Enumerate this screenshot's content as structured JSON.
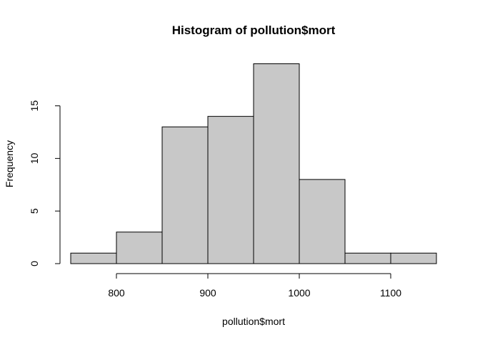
{
  "chart_data": {
    "type": "bar",
    "title": "Histogram of pollution$mort",
    "xlabel": "pollution$mort",
    "ylabel": "Frequency",
    "bins": [
      {
        "from": 750,
        "to": 800,
        "count": 1
      },
      {
        "from": 800,
        "to": 850,
        "count": 3
      },
      {
        "from": 850,
        "to": 900,
        "count": 13
      },
      {
        "from": 900,
        "to": 950,
        "count": 14
      },
      {
        "from": 950,
        "to": 1000,
        "count": 19
      },
      {
        "from": 1000,
        "to": 1050,
        "count": 8
      },
      {
        "from": 1050,
        "to": 1100,
        "count": 1
      },
      {
        "from": 1100,
        "to": 1150,
        "count": 1
      }
    ],
    "x_ticks": [
      800,
      900,
      1000,
      1100
    ],
    "y_ticks": [
      0,
      5,
      10,
      15
    ],
    "xlim": [
      750,
      1150
    ],
    "ylim": [
      0,
      19
    ],
    "grid": false,
    "bar_fill": "#c8c8c8",
    "bar_stroke": "#000000"
  }
}
